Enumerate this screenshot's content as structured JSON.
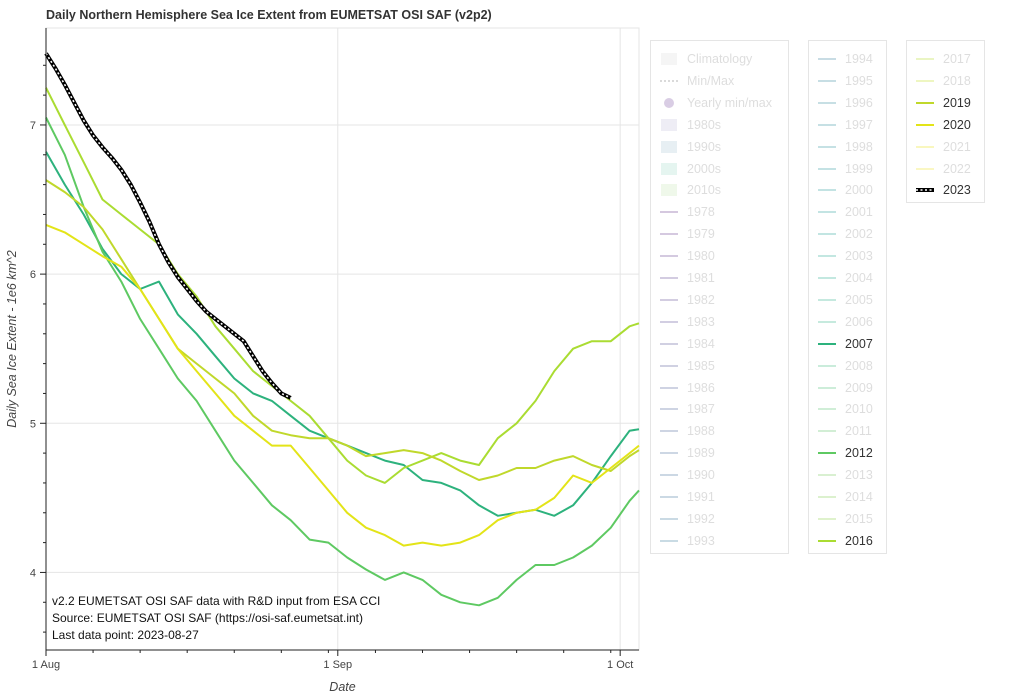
{
  "chart_data": {
    "type": "line",
    "title": "Daily Northern Hemisphere Sea Ice Extent from EUMETSAT OSI SAF (v2p2)",
    "xlabel": "Date",
    "ylabel": "Daily Sea Ice Extent - 1e6 km^2",
    "x_ticks": [
      {
        "day": 1,
        "label": "1 Aug"
      },
      {
        "day": 32,
        "label": "1 Sep"
      },
      {
        "day": 62,
        "label": "1 Oct"
      }
    ],
    "y_ticks": [
      4,
      5,
      6,
      7
    ],
    "xlim": [
      1,
      64
    ],
    "ylim": [
      3.48,
      7.65
    ],
    "grid": true,
    "annotation": [
      "v2.2 EUMETSAT OSI SAF data with R&D input from ESA CCI",
      "Source: EUMETSAT OSI SAF (https://osi-saf.eumetsat.int)",
      "Last data point: 2023-08-27"
    ],
    "series": [
      {
        "name": "2007",
        "color": "#2db27d",
        "style": "solid",
        "x": [
          1,
          3,
          5,
          7,
          9,
          11,
          13,
          15,
          17,
          19,
          21,
          23,
          25,
          27,
          29,
          31,
          33,
          35,
          37,
          39,
          41,
          43,
          45,
          47,
          49,
          51,
          53,
          55,
          57,
          59,
          61,
          63,
          64
        ],
        "y": [
          6.82,
          6.6,
          6.4,
          6.17,
          6.0,
          5.9,
          5.95,
          5.73,
          5.6,
          5.45,
          5.3,
          5.2,
          5.15,
          5.05,
          4.95,
          4.9,
          4.85,
          4.8,
          4.75,
          4.72,
          4.62,
          4.6,
          4.55,
          4.45,
          4.38,
          4.4,
          4.42,
          4.38,
          4.45,
          4.6,
          4.78,
          4.95,
          4.96
        ]
      },
      {
        "name": "2012",
        "color": "#5ec962",
        "style": "solid",
        "x": [
          1,
          3,
          5,
          7,
          9,
          11,
          13,
          15,
          17,
          19,
          21,
          23,
          25,
          27,
          29,
          31,
          33,
          35,
          37,
          39,
          41,
          43,
          45,
          47,
          49,
          51,
          53,
          55,
          57,
          59,
          61,
          63,
          64
        ],
        "y": [
          7.05,
          6.8,
          6.45,
          6.15,
          5.95,
          5.7,
          5.5,
          5.3,
          5.15,
          4.95,
          4.75,
          4.6,
          4.45,
          4.35,
          4.22,
          4.2,
          4.1,
          4.02,
          3.95,
          4.0,
          3.95,
          3.85,
          3.8,
          3.78,
          3.83,
          3.95,
          4.05,
          4.05,
          4.1,
          4.18,
          4.3,
          4.48,
          4.55
        ]
      },
      {
        "name": "2016",
        "color": "#aadc32",
        "style": "solid",
        "x": [
          1,
          3,
          5,
          7,
          9,
          11,
          13,
          15,
          17,
          19,
          21,
          23,
          25,
          27,
          29,
          31,
          33,
          35,
          37,
          39,
          41,
          43,
          45,
          47,
          49,
          51,
          53,
          55,
          57,
          59,
          61,
          63,
          64
        ],
        "y": [
          7.25,
          7.0,
          6.75,
          6.5,
          6.4,
          6.3,
          6.2,
          6.0,
          5.85,
          5.65,
          5.5,
          5.35,
          5.25,
          5.15,
          5.05,
          4.9,
          4.75,
          4.65,
          4.6,
          4.7,
          4.75,
          4.8,
          4.75,
          4.72,
          4.9,
          5.0,
          5.15,
          5.35,
          5.5,
          5.55,
          5.55,
          5.65,
          5.67
        ]
      },
      {
        "name": "2019",
        "color": "#c0d82b",
        "style": "solid",
        "x": [
          1,
          3,
          5,
          7,
          9,
          11,
          13,
          15,
          17,
          19,
          21,
          23,
          25,
          27,
          29,
          31,
          33,
          35,
          37,
          39,
          41,
          43,
          45,
          47,
          49,
          51,
          53,
          55,
          57,
          59,
          61,
          63,
          64
        ],
        "y": [
          6.63,
          6.55,
          6.45,
          6.3,
          6.1,
          5.9,
          5.7,
          5.5,
          5.4,
          5.3,
          5.2,
          5.05,
          4.95,
          4.92,
          4.9,
          4.9,
          4.85,
          4.78,
          4.8,
          4.82,
          4.8,
          4.75,
          4.68,
          4.62,
          4.65,
          4.7,
          4.7,
          4.75,
          4.78,
          4.72,
          4.68,
          4.78,
          4.82
        ]
      },
      {
        "name": "2020",
        "color": "#e3e418",
        "style": "solid",
        "x": [
          1,
          3,
          5,
          7,
          9,
          11,
          13,
          15,
          17,
          19,
          21,
          23,
          25,
          27,
          29,
          31,
          33,
          35,
          37,
          39,
          41,
          43,
          45,
          47,
          49,
          51,
          53,
          55,
          57,
          59,
          61,
          63,
          64
        ],
        "y": [
          6.33,
          6.28,
          6.2,
          6.12,
          6.05,
          5.9,
          5.7,
          5.5,
          5.35,
          5.2,
          5.05,
          4.95,
          4.85,
          4.85,
          4.7,
          4.55,
          4.4,
          4.3,
          4.25,
          4.18,
          4.2,
          4.18,
          4.2,
          4.25,
          4.35,
          4.4,
          4.42,
          4.5,
          4.65,
          4.6,
          4.7,
          4.8,
          4.85
        ]
      },
      {
        "name": "2023",
        "color": "#000000",
        "style": "dotted",
        "x": [
          1,
          2,
          3,
          4,
          5,
          6,
          7,
          8,
          9,
          10,
          11,
          12,
          13,
          14,
          15,
          16,
          17,
          18,
          19,
          20,
          21,
          22,
          23,
          24,
          25,
          26,
          27
        ],
        "y": [
          7.48,
          7.38,
          7.27,
          7.15,
          7.03,
          6.93,
          6.85,
          6.78,
          6.7,
          6.6,
          6.48,
          6.35,
          6.2,
          6.08,
          5.98,
          5.9,
          5.82,
          5.75,
          5.7,
          5.65,
          5.6,
          5.55,
          5.45,
          5.35,
          5.27,
          5.2,
          5.17
        ]
      }
    ]
  },
  "legend_columns": [
    {
      "items": [
        {
          "label": "Climatology",
          "glyph": "band",
          "color": "#bdbdbd",
          "active": false
        },
        {
          "label": "Min/Max",
          "glyph": "dashed",
          "color": "#555555",
          "active": false
        },
        {
          "label": "Yearly min/max",
          "glyph": "dot",
          "color": "#7b4fa0",
          "active": false
        },
        {
          "label": "1980s",
          "glyph": "band",
          "color": "#8c7fb8",
          "active": false
        },
        {
          "label": "1990s",
          "glyph": "band",
          "color": "#5a8fb0",
          "active": false
        },
        {
          "label": "2000s",
          "glyph": "band",
          "color": "#4cb89a",
          "active": false
        },
        {
          "label": "2010s",
          "glyph": "band",
          "color": "#90d070",
          "active": false
        },
        {
          "label": "1978",
          "glyph": "line",
          "color": "#6b3d8f",
          "active": false
        },
        {
          "label": "1979",
          "glyph": "line",
          "color": "#6a4191",
          "active": false
        },
        {
          "label": "1980",
          "glyph": "line",
          "color": "#684593",
          "active": false
        },
        {
          "label": "1981",
          "glyph": "line",
          "color": "#664a95",
          "active": false
        },
        {
          "label": "1982",
          "glyph": "line",
          "color": "#634f97",
          "active": false
        },
        {
          "label": "1983",
          "glyph": "line",
          "color": "#605498",
          "active": false
        },
        {
          "label": "1984",
          "glyph": "line",
          "color": "#5d599a",
          "active": false
        },
        {
          "label": "1985",
          "glyph": "line",
          "color": "#5a5e9b",
          "active": false
        },
        {
          "label": "1986",
          "glyph": "line",
          "color": "#57639c",
          "active": false
        },
        {
          "label": "1987",
          "glyph": "line",
          "color": "#54689d",
          "active": false
        },
        {
          "label": "1988",
          "glyph": "line",
          "color": "#516c9e",
          "active": false
        },
        {
          "label": "1989",
          "glyph": "line",
          "color": "#4e719f",
          "active": false
        },
        {
          "label": "1990",
          "glyph": "line",
          "color": "#4a75a0",
          "active": false
        },
        {
          "label": "1991",
          "glyph": "line",
          "color": "#4779a0",
          "active": false
        },
        {
          "label": "1992",
          "glyph": "line",
          "color": "#447ea1",
          "active": false
        },
        {
          "label": "1993",
          "glyph": "line",
          "color": "#4182a1",
          "active": false
        }
      ]
    },
    {
      "items": [
        {
          "label": "1994",
          "glyph": "line",
          "color": "#3e86a1",
          "active": false
        },
        {
          "label": "1995",
          "glyph": "line",
          "color": "#3b8aa1",
          "active": false
        },
        {
          "label": "1996",
          "glyph": "line",
          "color": "#388ea1",
          "active": false
        },
        {
          "label": "1997",
          "glyph": "line",
          "color": "#3592a1",
          "active": false
        },
        {
          "label": "1998",
          "glyph": "line",
          "color": "#3296a0",
          "active": false
        },
        {
          "label": "1999",
          "glyph": "line",
          "color": "#2f9aa0",
          "active": false
        },
        {
          "label": "2000",
          "glyph": "line",
          "color": "#2c9e9e",
          "active": false
        },
        {
          "label": "2001",
          "glyph": "line",
          "color": "#2aa29c",
          "active": false
        },
        {
          "label": "2002",
          "glyph": "line",
          "color": "#29a69a",
          "active": false
        },
        {
          "label": "2003",
          "glyph": "line",
          "color": "#2aaa97",
          "active": false
        },
        {
          "label": "2004",
          "glyph": "line",
          "color": "#2dae93",
          "active": false
        },
        {
          "label": "2005",
          "glyph": "line",
          "color": "#31b18f",
          "active": false
        },
        {
          "label": "2006",
          "glyph": "line",
          "color": "#37b58b",
          "active": false
        },
        {
          "label": "2007",
          "glyph": "line",
          "color": "#2db27d",
          "active": true
        },
        {
          "label": "2008",
          "glyph": "line",
          "color": "#45bc80",
          "active": false
        },
        {
          "label": "2009",
          "glyph": "line",
          "color": "#4ec07a",
          "active": false
        },
        {
          "label": "2010",
          "glyph": "line",
          "color": "#58c373",
          "active": false
        },
        {
          "label": "2011",
          "glyph": "line",
          "color": "#62c66c",
          "active": false
        },
        {
          "label": "2012",
          "glyph": "line",
          "color": "#5ec962",
          "active": true
        },
        {
          "label": "2013",
          "glyph": "line",
          "color": "#78cd5c",
          "active": false
        },
        {
          "label": "2014",
          "glyph": "line",
          "color": "#84d054",
          "active": false
        },
        {
          "label": "2015",
          "glyph": "line",
          "color": "#90d34b",
          "active": false
        },
        {
          "label": "2016",
          "glyph": "line",
          "color": "#aadc32",
          "active": true
        }
      ]
    },
    {
      "items": [
        {
          "label": "2017",
          "glyph": "line",
          "color": "#b6dc2c",
          "active": false
        },
        {
          "label": "2018",
          "glyph": "line",
          "color": "#c3df26",
          "active": false
        },
        {
          "label": "2019",
          "glyph": "line",
          "color": "#c0d82b",
          "active": true
        },
        {
          "label": "2020",
          "glyph": "line",
          "color": "#e3e418",
          "active": true
        },
        {
          "label": "2021",
          "glyph": "line",
          "color": "#ece51b",
          "active": false
        },
        {
          "label": "2022",
          "glyph": "line",
          "color": "#f0e62a",
          "active": false
        },
        {
          "label": "2023",
          "glyph": "dotted",
          "color": "#000000",
          "active": true
        }
      ]
    }
  ]
}
